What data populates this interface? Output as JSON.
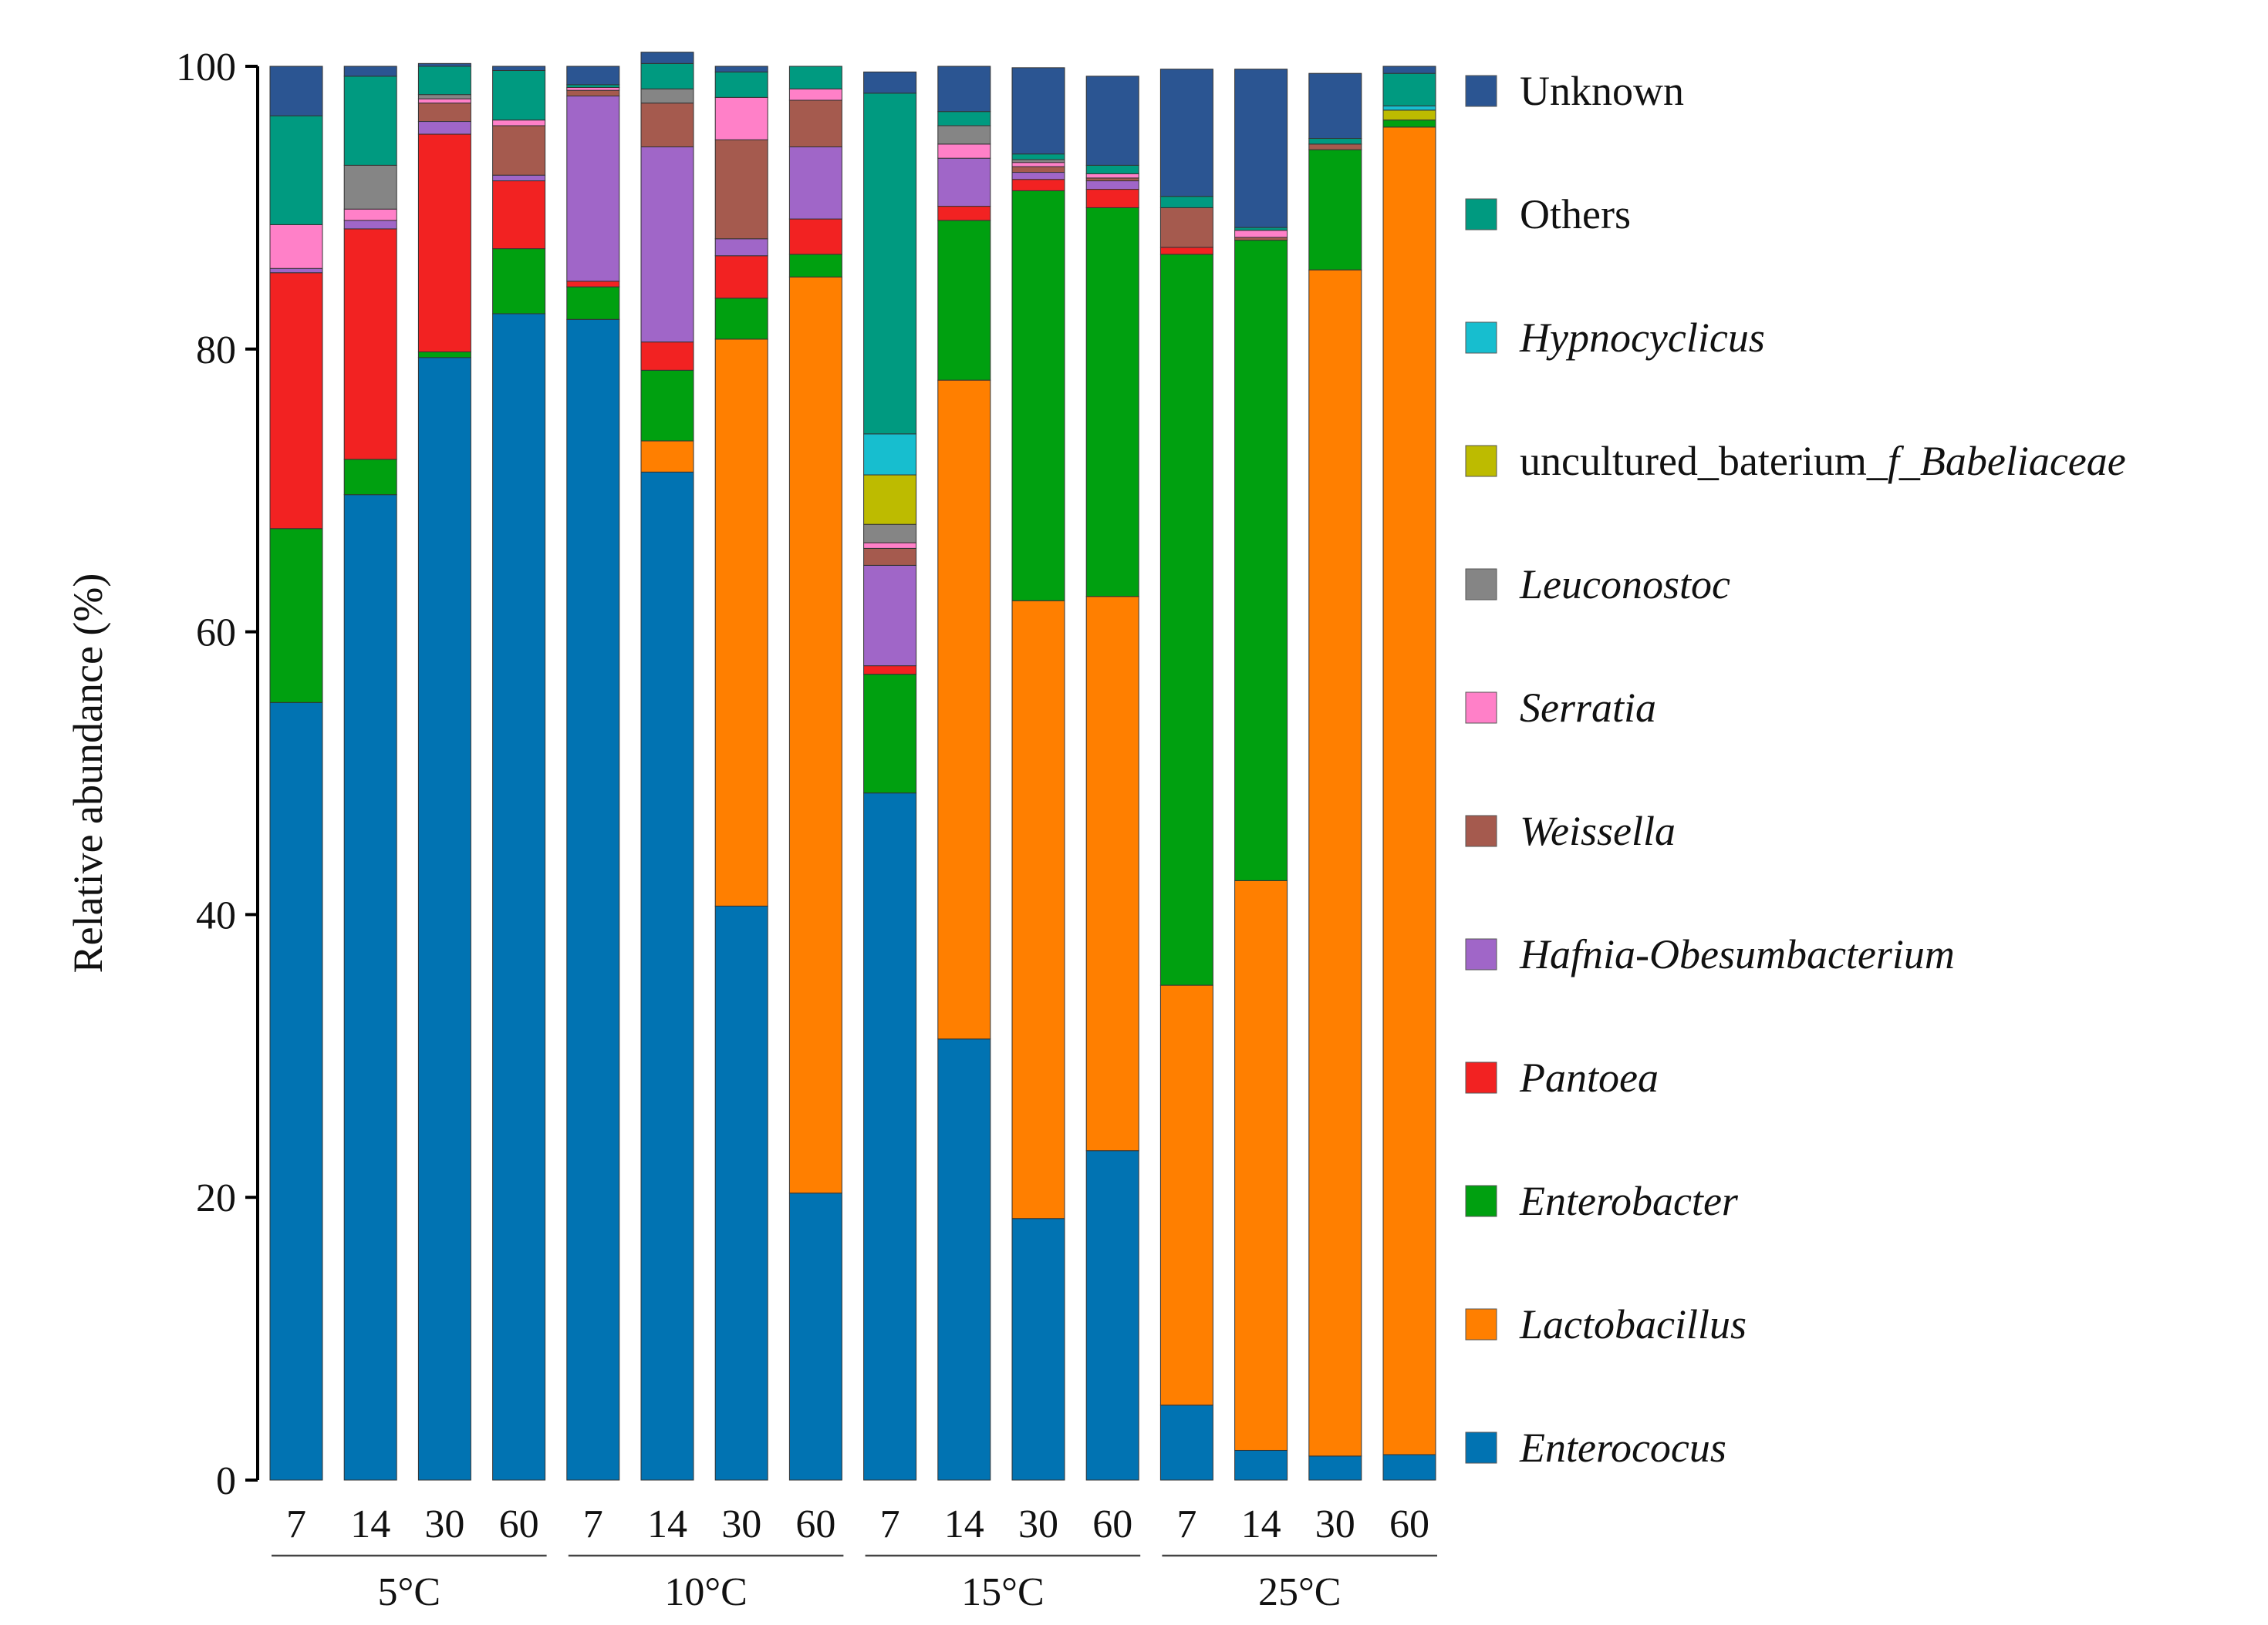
{
  "chart_data": {
    "type": "stacked-bar",
    "title": "",
    "xlabel": "",
    "ylabel": "Relative abundance (%)",
    "ylim": [
      0,
      100
    ],
    "yticks": [
      0,
      20,
      40,
      60,
      80,
      100
    ],
    "grid": false,
    "legend_position": "right",
    "groups": [
      {
        "label": "5°C",
        "categories": [
          "7",
          "14",
          "30",
          "60"
        ]
      },
      {
        "label": "10°C",
        "categories": [
          "7",
          "14",
          "30",
          "60"
        ]
      },
      {
        "label": "15°C",
        "categories": [
          "7",
          "14",
          "30",
          "60"
        ]
      },
      {
        "label": "25°C",
        "categories": [
          "7",
          "14",
          "30",
          "60"
        ]
      }
    ],
    "series": [
      {
        "name": "Enterococus",
        "italic": true,
        "color": "#0173B2",
        "values": [
          55.0,
          69.7,
          79.4,
          82.5,
          82.1,
          71.3,
          40.6,
          20.3,
          48.6,
          31.2,
          18.5,
          23.3,
          5.3,
          2.1,
          1.7,
          1.8
        ]
      },
      {
        "name": "Lactobacillus",
        "italic": true,
        "color": "#FF7F00",
        "values": [
          0,
          0,
          0,
          0,
          0,
          2.2,
          40.1,
          64.8,
          0,
          46.6,
          43.7,
          39.2,
          29.7,
          40.3,
          83.9,
          93.9
        ]
      },
      {
        "name": "Enterobacter",
        "italic": true,
        "color": "#00A010",
        "values": [
          12.3,
          2.5,
          0.4,
          4.6,
          2.3,
          5.0,
          2.9,
          1.6,
          8.4,
          11.3,
          29.0,
          27.5,
          51.7,
          45.3,
          8.5,
          0.5
        ]
      },
      {
        "name": "Pantoea",
        "italic": true,
        "color": "#F22222",
        "values": [
          18.1,
          16.3,
          15.4,
          4.8,
          0.4,
          2.0,
          3.0,
          2.5,
          0.6,
          1.0,
          0.8,
          1.3,
          0.5,
          0,
          0,
          0
        ]
      },
      {
        "name": "Hafnia-Obesumbacterium",
        "italic": true,
        "color": "#A066C8",
        "values": [
          0.3,
          0.6,
          0.9,
          0.4,
          13.1,
          13.8,
          1.2,
          5.1,
          7.1,
          3.4,
          0.5,
          0.6,
          0,
          0,
          0,
          0
        ]
      },
      {
        "name": "Weissella",
        "italic": true,
        "color": "#A55A4E",
        "values": [
          0,
          0,
          1.3,
          3.5,
          0.4,
          3.1,
          7.0,
          3.3,
          1.2,
          0,
          0.4,
          0.2,
          2.8,
          0.2,
          0.4,
          0
        ]
      },
      {
        "name": "Serratia",
        "italic": true,
        "color": "#FF80C8",
        "values": [
          3.1,
          0.8,
          0.3,
          0.4,
          0.2,
          0,
          3.0,
          0.8,
          0.4,
          1.0,
          0.3,
          0.3,
          0,
          0.5,
          0,
          0
        ]
      },
      {
        "name": "Leuconostoc",
        "italic": true,
        "color": "#858585",
        "values": [
          0,
          3.1,
          0.3,
          0,
          0,
          1.0,
          0,
          0,
          1.3,
          1.3,
          0.2,
          0,
          0,
          0,
          0,
          0
        ]
      },
      {
        "name": "uncultured_baterium_f_Babeliaceae",
        "italic": false,
        "color": "#BDBB00",
        "values": [
          0,
          0,
          0,
          0,
          0,
          0,
          0,
          0,
          3.5,
          0,
          0,
          0,
          0,
          0,
          0,
          0.7
        ]
      },
      {
        "name": "Hypnocyclicus",
        "italic": true,
        "color": "#17BECF",
        "values": [
          0,
          0,
          0,
          0,
          0,
          0,
          0,
          0,
          2.9,
          0,
          0,
          0,
          0,
          0,
          0,
          0.3
        ]
      },
      {
        "name": "Others",
        "italic": false,
        "color": "#009A80",
        "values": [
          7.7,
          6.3,
          2.0,
          3.5,
          0.2,
          1.8,
          1.8,
          1.6,
          24.1,
          1.0,
          0.4,
          0.6,
          0.8,
          0.2,
          0.4,
          2.3
        ]
      },
      {
        "name": "Unknown",
        "italic": false,
        "color": "#2B5592",
        "values": [
          3.5,
          0.7,
          0.2,
          0.3,
          1.3,
          0.8,
          0.4,
          0,
          1.5,
          3.2,
          6.1,
          6.3,
          9.0,
          11.2,
          4.6,
          0.5
        ]
      }
    ],
    "legend": [
      {
        "text": "Unknown",
        "color": "#2B5592",
        "italic": false
      },
      {
        "text": "Others",
        "color": "#009A80",
        "italic": false
      },
      {
        "text": "Hypnocyclicus",
        "color": "#17BECF",
        "italic": true
      },
      {
        "text": "uncultured_baterium_f_Babeliaceae",
        "prefix": "uncultured_baterium_",
        "suffix": "f_Babeliaceae",
        "color": "#BDBB00",
        "italic": false
      },
      {
        "text": "Leuconostoc",
        "color": "#858585",
        "italic": true
      },
      {
        "text": "Serratia",
        "color": "#FF80C8",
        "italic": true
      },
      {
        "text": "Weissella",
        "color": "#A55A4E",
        "italic": true
      },
      {
        "text": "Hafnia-Obesumbacterium",
        "color": "#A066C8",
        "italic": true
      },
      {
        "text": "Pantoea",
        "color": "#F22222",
        "italic": true
      },
      {
        "text": "Enterobacter",
        "color": "#00A010",
        "italic": true
      },
      {
        "text": "Lactobacillus",
        "color": "#FF7F00",
        "italic": true
      },
      {
        "text": "Enterococus",
        "color": "#0173B2",
        "italic": true
      }
    ]
  }
}
